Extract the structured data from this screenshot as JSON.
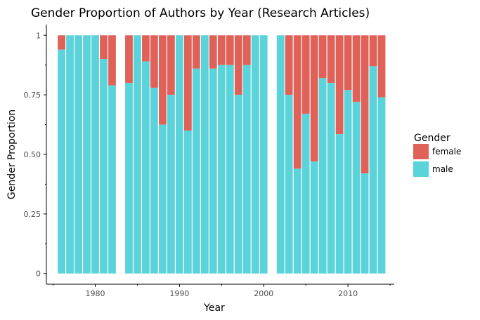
{
  "chart_data": {
    "type": "bar",
    "stacked": true,
    "title": "Gender Proportion of Authors by Year (Research Articles)",
    "xlabel": "Year",
    "ylabel": "Gender Proportion",
    "xlim": [
      1974.2,
      2015.5
    ],
    "ylim": [
      -0.045,
      1.045
    ],
    "x_ticks": [
      1980,
      1990,
      2000,
      2010
    ],
    "x_tick_labels": [
      "1980",
      "1990",
      "2000",
      "2010"
    ],
    "y_ticks": [
      0,
      0.25,
      0.5,
      0.75,
      1
    ],
    "y_tick_labels": [
      "0",
      "0.25",
      "0.50",
      "0.75",
      "1"
    ],
    "grid": false,
    "legend": {
      "title": "Gender",
      "position": "right",
      "entries": [
        {
          "name": "female",
          "color": "#e06158"
        },
        {
          "name": "male",
          "color": "#5bd3da"
        }
      ]
    },
    "x": [
      1976,
      1977,
      1978,
      1979,
      1980,
      1981,
      1982,
      1984,
      1985,
      1986,
      1987,
      1988,
      1989,
      1990,
      1991,
      1992,
      1993,
      1994,
      1995,
      1996,
      1997,
      1998,
      1999,
      2000,
      2002,
      2003,
      2004,
      2005,
      2006,
      2007,
      2008,
      2009,
      2010,
      2011,
      2012,
      2013,
      2014
    ],
    "series": [
      {
        "name": "male",
        "color": "#5bd3da",
        "values": [
          0.94,
          1,
          1,
          1,
          1,
          0.9,
          0.79,
          0.8,
          1,
          0.89,
          0.78,
          0.625,
          0.75,
          1,
          0.6,
          0.86,
          1,
          0.86,
          0.875,
          0.875,
          0.75,
          0.875,
          1,
          1,
          1,
          0.75,
          0.44,
          0.67,
          0.47,
          0.82,
          0.8,
          0.585,
          0.77,
          0.72,
          0.42,
          0.87,
          0.74
        ]
      },
      {
        "name": "female",
        "color": "#e06158",
        "values": [
          0.06,
          0,
          0,
          0,
          0,
          0.1,
          0.21,
          0.2,
          0,
          0.11,
          0.22,
          0.375,
          0.25,
          0,
          0.4,
          0.14,
          0,
          0.14,
          0.125,
          0.125,
          0.25,
          0.125,
          0,
          0,
          0,
          0.25,
          0.56,
          0.33,
          0.53,
          0.18,
          0.2,
          0.415,
          0.23,
          0.28,
          0.58,
          0.13,
          0.26
        ]
      }
    ]
  }
}
